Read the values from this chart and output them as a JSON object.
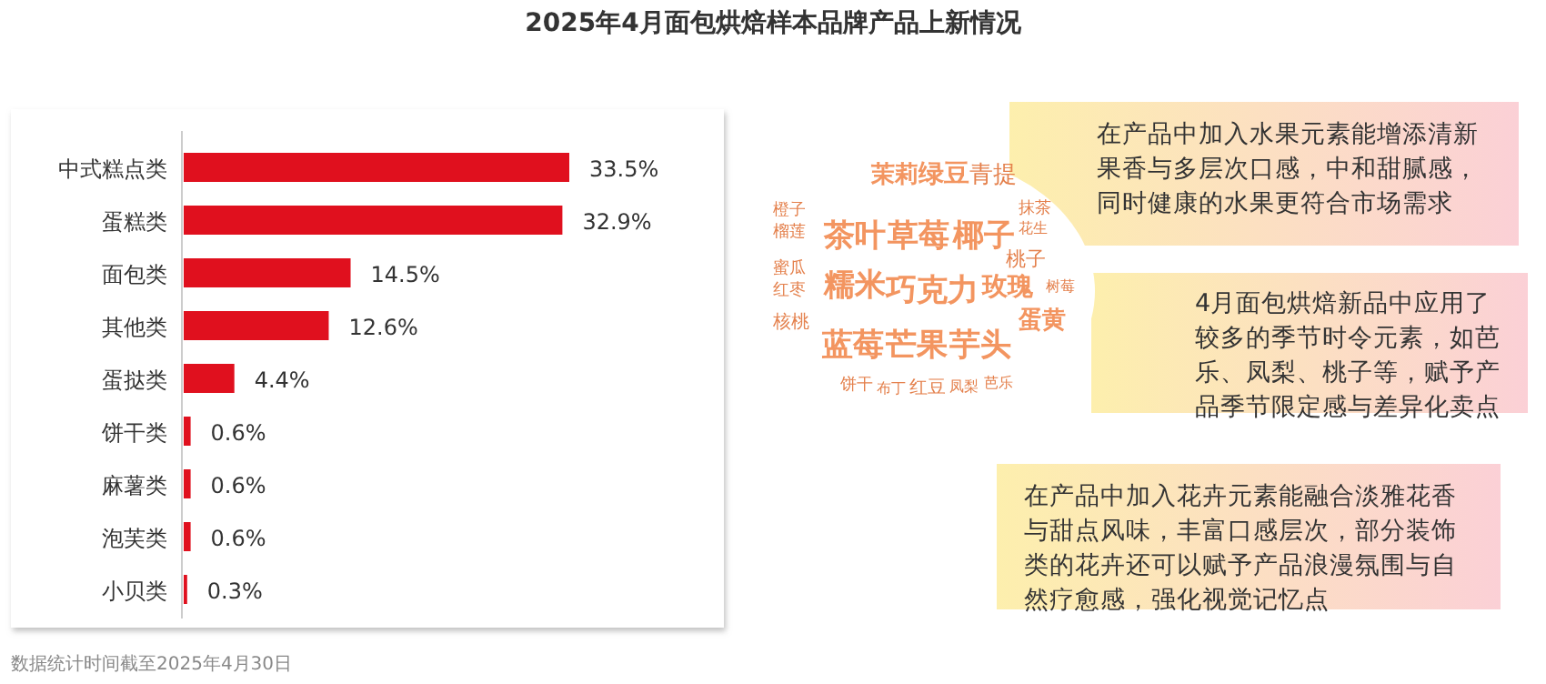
{
  "chart_data": [
    {
      "type": "bar",
      "orientation": "horizontal",
      "title": "2025年4月面包烘焙样本品牌产品上新情况",
      "categories": [
        "中式糕点类",
        "蛋糕类",
        "面包类",
        "其他类",
        "蛋挞类",
        "饼干类",
        "麻薯类",
        "泡芙类",
        "小贝类"
      ],
      "values": [
        33.5,
        32.9,
        14.5,
        12.6,
        4.4,
        0.6,
        0.6,
        0.6,
        0.3
      ],
      "value_labels": [
        "33.5%",
        "32.9%",
        "14.5%",
        "12.6%",
        "4.4%",
        "0.6%",
        "0.6%",
        "0.6%",
        "0.3%"
      ],
      "color": "#e0101e",
      "annotations": [
        "数据统计时间截至2025年4月30日"
      ]
    },
    {
      "type": "other",
      "annotations": [
        "巧克力",
        "茶叶",
        "草莓",
        "椰子",
        "糯米",
        "蓝莓",
        "芒果",
        "芋头",
        "绿豆",
        "茉莉",
        "玫瑰",
        "蛋黄",
        "青提",
        "抹茶",
        "桃子",
        "花生",
        "树莓",
        "红豆",
        "凤梨",
        "芭乐",
        "饼干",
        "布丁",
        "核桃",
        "红枣",
        "蜜瓜",
        "榴莲",
        "橙子",
        "在产品中加入水果元素能增添清新果香与多层次口感，中和甜腻感，同时健康的水果更符合市场需求",
        "4月面包烘焙新品中应用了较多的季节时令元素，如芭乐、凤梨、桃子等，赋予产品季节限定感与差异化卖点",
        "在产品中加入花卉元素能融合淡雅花香与甜点风味，丰富口感层次，部分装饰类的花卉还可以赋予产品浪漫氛围与自然疗愈感，强化视觉记忆点"
      ]
    }
  ]
}
